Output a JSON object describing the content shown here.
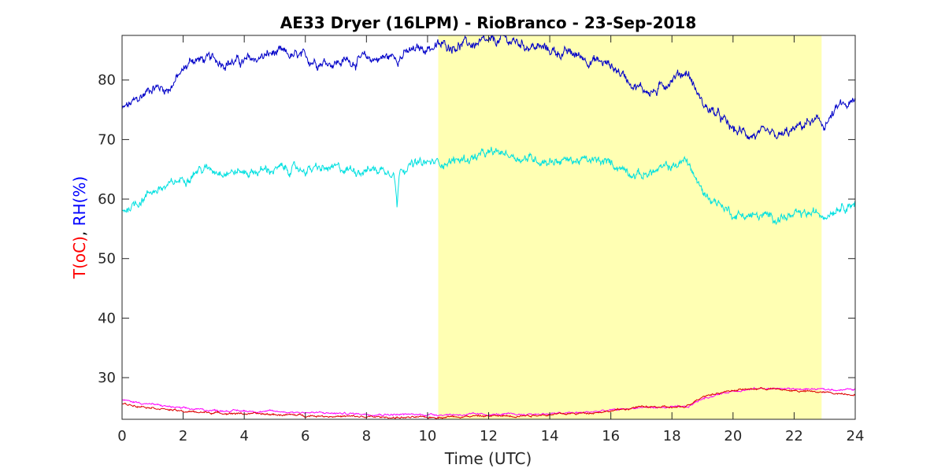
{
  "chart_data": {
    "type": "line",
    "title": "AE33 Dryer (16LPM)  - RioBranco - 23-Sep-2018",
    "xlabel": "Time (UTC)",
    "ylabel_parts": [
      {
        "text": "T(oC)",
        "color": "#ff0000"
      },
      {
        "text": ", ",
        "color": "#000000"
      },
      {
        "text": "RH(%)",
        "color": "#0000ff"
      }
    ],
    "xlim": [
      0,
      24
    ],
    "ylim": [
      23,
      87.5
    ],
    "xticks": [
      0,
      2,
      4,
      6,
      8,
      10,
      12,
      14,
      16,
      18,
      20,
      22,
      24
    ],
    "yticks": [
      30,
      40,
      50,
      60,
      70,
      80
    ],
    "grid": false,
    "shaded_region": {
      "x_start": 10.35,
      "x_end": 22.9,
      "color": "#ffffb3"
    },
    "series": [
      {
        "color": "#0000c8",
        "noise": 0.8,
        "points": [
          [
            0,
            75
          ],
          [
            0.5,
            76.5
          ],
          [
            1,
            79
          ],
          [
            1.5,
            78.5
          ],
          [
            2,
            81.5
          ],
          [
            2.3,
            83.5
          ],
          [
            3,
            83.3
          ],
          [
            4,
            83
          ],
          [
            5,
            84.5
          ],
          [
            6,
            83.5
          ],
          [
            7,
            83
          ],
          [
            8,
            83.5
          ],
          [
            9,
            84
          ],
          [
            10,
            85.5
          ],
          [
            11,
            86
          ],
          [
            12,
            86
          ],
          [
            12.5,
            86.8
          ],
          [
            13,
            86.2
          ],
          [
            14,
            85
          ],
          [
            15,
            84
          ],
          [
            16,
            82.5
          ],
          [
            17,
            78.5
          ],
          [
            17.5,
            78
          ],
          [
            18,
            80.5
          ],
          [
            18.5,
            81.5
          ],
          [
            19,
            76
          ],
          [
            19.5,
            74
          ],
          [
            20,
            71.5
          ],
          [
            21,
            70.5
          ],
          [
            21.5,
            70.3
          ],
          [
            22,
            71.5
          ],
          [
            22.5,
            73
          ],
          [
            23,
            72.5
          ],
          [
            23.5,
            75.5
          ],
          [
            24,
            76
          ]
        ]
      },
      {
        "color": "#00e0e0",
        "noise": 0.7,
        "points": [
          [
            0,
            58
          ],
          [
            0.5,
            59.5
          ],
          [
            1,
            61.5
          ],
          [
            1.5,
            62
          ],
          [
            2,
            63.5
          ],
          [
            2.5,
            65
          ],
          [
            3,
            65
          ],
          [
            4,
            64.5
          ],
          [
            5,
            65
          ],
          [
            6,
            65
          ],
          [
            7,
            65
          ],
          [
            8,
            65
          ],
          [
            8.9,
            65
          ],
          [
            9.0,
            59
          ],
          [
            9.1,
            65.5
          ],
          [
            10,
            66
          ],
          [
            11,
            66.5
          ],
          [
            12,
            67.5
          ],
          [
            12.5,
            67.8
          ],
          [
            13,
            67
          ],
          [
            14,
            66.5
          ],
          [
            15,
            66.5
          ],
          [
            16,
            66
          ],
          [
            17,
            64
          ],
          [
            18,
            65.5
          ],
          [
            18.5,
            66.5
          ],
          [
            19,
            61
          ],
          [
            19.5,
            59.5
          ],
          [
            20,
            57.5
          ],
          [
            21,
            57
          ],
          [
            22,
            57
          ],
          [
            22.5,
            57.5
          ],
          [
            23,
            57.5
          ],
          [
            23.5,
            59
          ],
          [
            24,
            59.5
          ]
        ]
      },
      {
        "color": "#ff00ff",
        "noise": 0.15,
        "points": [
          [
            0,
            26.2
          ],
          [
            1,
            25.5
          ],
          [
            2,
            24.8
          ],
          [
            3,
            24.5
          ],
          [
            5,
            24.3
          ],
          [
            7,
            24
          ],
          [
            9,
            23.8
          ],
          [
            10,
            23.8
          ],
          [
            11,
            23.8
          ],
          [
            13,
            23.8
          ],
          [
            15,
            24.1
          ],
          [
            16,
            24.5
          ],
          [
            17,
            25
          ],
          [
            18,
            25
          ],
          [
            18.5,
            25
          ],
          [
            19,
            26.5
          ],
          [
            20,
            27.8
          ],
          [
            21,
            28.2
          ],
          [
            22,
            28.1
          ],
          [
            23,
            28
          ],
          [
            24,
            28
          ]
        ]
      },
      {
        "color": "#dd0000",
        "noise": 0.15,
        "points": [
          [
            0,
            25.6
          ],
          [
            1,
            25
          ],
          [
            2,
            24.3
          ],
          [
            3,
            24.1
          ],
          [
            5,
            23.8
          ],
          [
            7,
            23.5
          ],
          [
            9,
            23.3
          ],
          [
            10,
            23.3
          ],
          [
            11,
            23.5
          ],
          [
            13,
            23.6
          ],
          [
            15,
            24
          ],
          [
            16,
            24.4
          ],
          [
            17,
            25.1
          ],
          [
            18,
            25
          ],
          [
            18.4,
            25
          ],
          [
            19,
            26.9
          ],
          [
            20,
            27.9
          ],
          [
            21,
            28.2
          ],
          [
            22,
            27.8
          ],
          [
            23,
            27.5
          ],
          [
            24,
            27.2
          ]
        ]
      }
    ]
  }
}
